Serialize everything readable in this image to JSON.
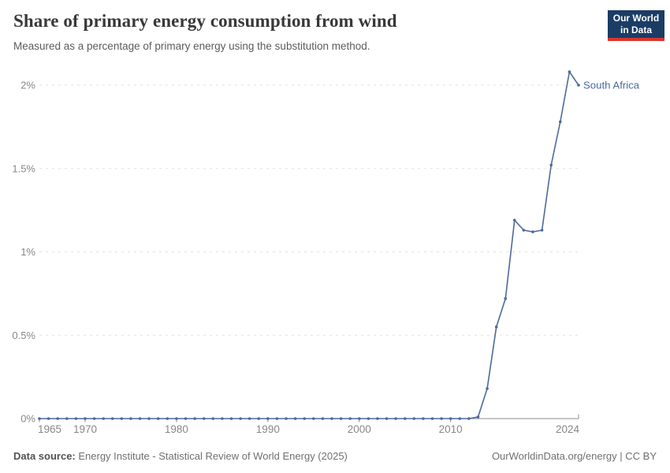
{
  "header": {
    "title": "Share of primary energy consumption from wind",
    "subtitle": "Measured as a percentage of primary energy using the substitution method."
  },
  "logo": {
    "line1": "Our World",
    "line2": "in Data"
  },
  "footer": {
    "source_label": "Data source:",
    "source_text": " Energy Institute - Statistical Review of World Energy (2025)",
    "credit": "OurWorldinData.org/energy | CC BY"
  },
  "colors": {
    "line": "#4c6a9c",
    "entity_label": "#4c6a9c",
    "grid": "#e2e2e2",
    "axis": "#8c8c8c",
    "tick_label": "#878787",
    "logo_bg": "#1b3c65",
    "logo_bar": "#d8352c"
  },
  "chart_data": {
    "type": "line",
    "title": "Share of primary energy consumption from wind",
    "xlabel": "",
    "ylabel": "",
    "grid": true,
    "legend": "end-of-line-label",
    "xlim": [
      1965,
      2024
    ],
    "ylim": [
      0,
      2.1
    ],
    "yticks": [
      {
        "v": 0,
        "label": "0%"
      },
      {
        "v": 0.5,
        "label": "0.5%"
      },
      {
        "v": 1,
        "label": "1%"
      },
      {
        "v": 1.5,
        "label": "1.5%"
      },
      {
        "v": 2,
        "label": "2%"
      }
    ],
    "xticks": [
      {
        "v": 1965,
        "label": "1965"
      },
      {
        "v": 1970,
        "label": "1970"
      },
      {
        "v": 1980,
        "label": "1980"
      },
      {
        "v": 1990,
        "label": "1990"
      },
      {
        "v": 2000,
        "label": "2000"
      },
      {
        "v": 2010,
        "label": "2010"
      },
      {
        "v": 2024,
        "label": "2024"
      }
    ],
    "x": [
      1965,
      1966,
      1967,
      1968,
      1969,
      1970,
      1971,
      1972,
      1973,
      1974,
      1975,
      1976,
      1977,
      1978,
      1979,
      1980,
      1981,
      1982,
      1983,
      1984,
      1985,
      1986,
      1987,
      1988,
      1989,
      1990,
      1991,
      1992,
      1993,
      1994,
      1995,
      1996,
      1997,
      1998,
      1999,
      2000,
      2001,
      2002,
      2003,
      2004,
      2005,
      2006,
      2007,
      2008,
      2009,
      2010,
      2011,
      2012,
      2013,
      2014,
      2015,
      2016,
      2017,
      2018,
      2019,
      2020,
      2021,
      2022,
      2023,
      2024
    ],
    "series": [
      {
        "name": "South Africa",
        "values": [
          0,
          0,
          0,
          0,
          0,
          0,
          0,
          0,
          0,
          0,
          0,
          0,
          0,
          0,
          0,
          0,
          0,
          0,
          0,
          0,
          0,
          0,
          0,
          0,
          0,
          0,
          0,
          0,
          0,
          0,
          0,
          0,
          0,
          0,
          0,
          0,
          0,
          0,
          0,
          0,
          0,
          0,
          0,
          0,
          0,
          0,
          0,
          0,
          0.01,
          0.18,
          0.55,
          0.72,
          1.19,
          1.13,
          1.12,
          1.13,
          1.52,
          1.78,
          2.08,
          2.0
        ]
      }
    ]
  }
}
